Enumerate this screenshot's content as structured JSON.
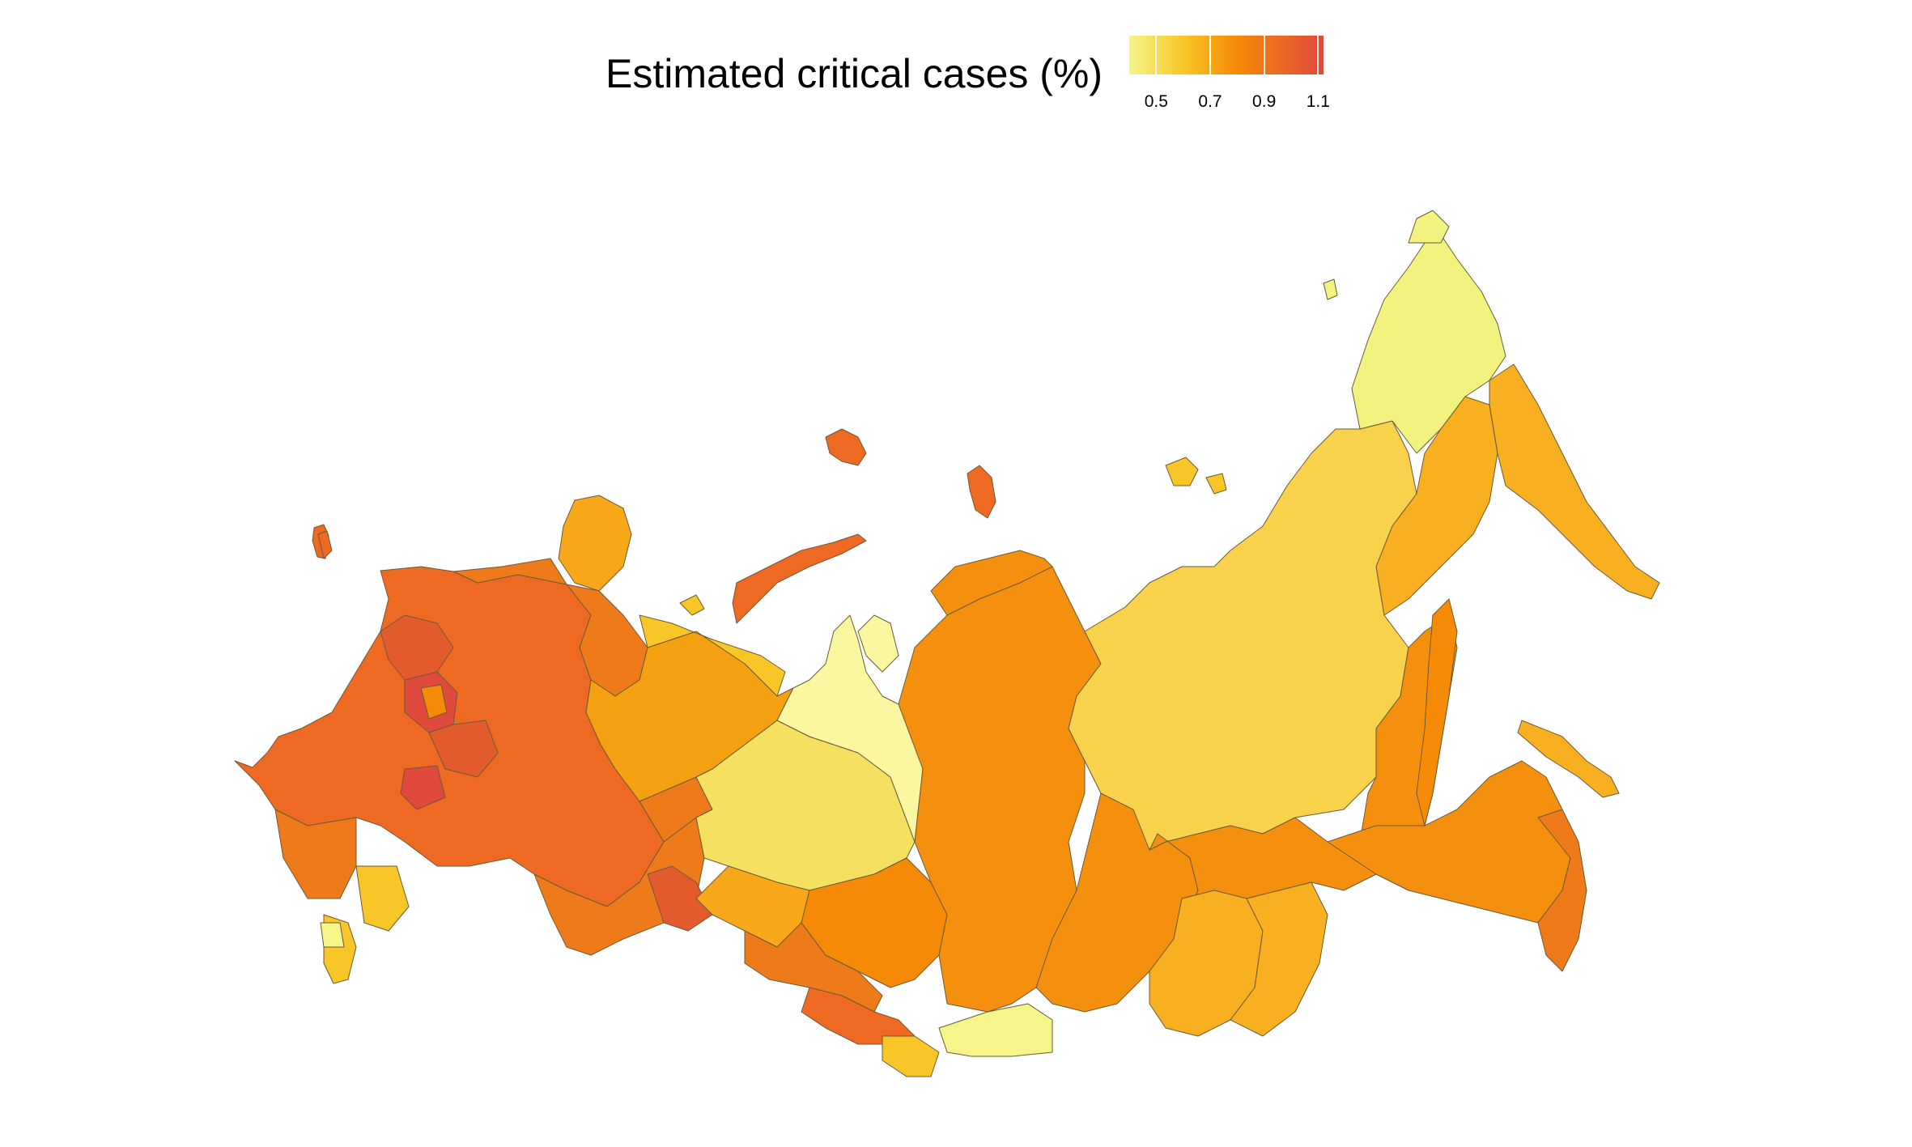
{
  "map": {
    "title": "Estimated critical cases (%)",
    "legend": {
      "ticks": [
        "0.5",
        "0.7",
        "0.9",
        "1.1"
      ],
      "tick_values": [
        0.5,
        0.7,
        0.9,
        1.1
      ],
      "range": [
        0.4,
        1.12
      ],
      "gradient_stops": [
        {
          "value": 0.4,
          "color": "#f5f58a"
        },
        {
          "value": 0.6,
          "color": "#f9c628"
        },
        {
          "value": 0.8,
          "color": "#f58a06"
        },
        {
          "value": 0.95,
          "color": "#ee6a22"
        },
        {
          "value": 1.12,
          "color": "#e04a3c"
        }
      ]
    },
    "colors": {
      "background": "#ffffff",
      "border": "#6b5a3a",
      "lowest": "#f5f58a",
      "highest": "#e04a3c"
    }
  }
}
